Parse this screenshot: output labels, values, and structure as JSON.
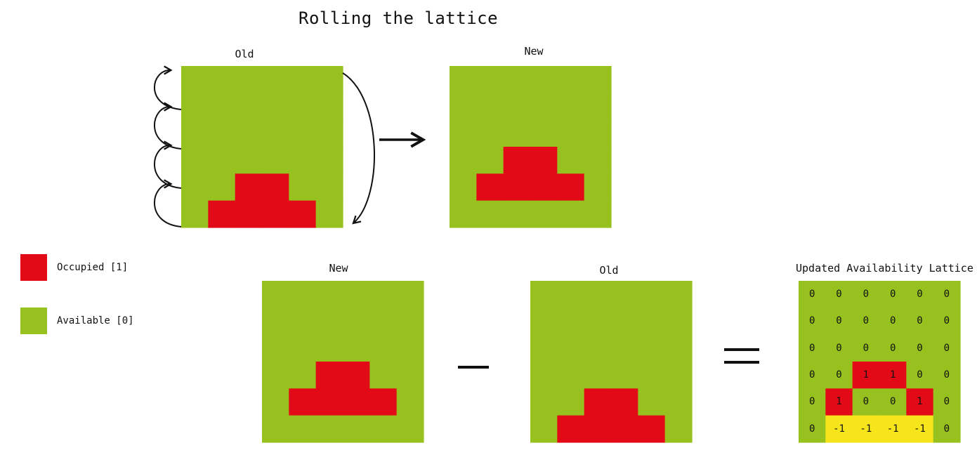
{
  "title": "Rolling the lattice",
  "panels": {
    "top_old_label": "Old",
    "top_new_label": "New",
    "bottom_new_label": "New",
    "bottom_old_label": "Old",
    "result_label": "Updated Availability Lattice"
  },
  "operators": {
    "minus": "−",
    "equals": "="
  },
  "legend": [
    {
      "label": "Occupied [1]",
      "color": "#e30a17"
    },
    {
      "label": "Available [0]",
      "color": "#97c11f"
    }
  ],
  "colors": {
    "available": "#97c11f",
    "occupied": "#e30a17",
    "negative": "#f6e51b",
    "arrow": "#111111"
  },
  "lattices": {
    "old": [
      [
        0,
        0,
        0,
        0,
        0,
        0
      ],
      [
        0,
        0,
        0,
        0,
        0,
        0
      ],
      [
        0,
        0,
        0,
        0,
        0,
        0
      ],
      [
        0,
        0,
        0,
        0,
        0,
        0
      ],
      [
        0,
        0,
        1,
        1,
        0,
        0
      ],
      [
        0,
        1,
        1,
        1,
        1,
        0
      ]
    ],
    "new": [
      [
        0,
        0,
        0,
        0,
        0,
        0
      ],
      [
        0,
        0,
        0,
        0,
        0,
        0
      ],
      [
        0,
        0,
        0,
        0,
        0,
        0
      ],
      [
        0,
        0,
        1,
        1,
        0,
        0
      ],
      [
        0,
        1,
        1,
        1,
        1,
        0
      ],
      [
        0,
        0,
        0,
        0,
        0,
        0
      ]
    ],
    "result": [
      [
        "0",
        "0",
        "0",
        "0",
        "0",
        "0"
      ],
      [
        "0",
        "0",
        "0",
        "0",
        "0",
        "0"
      ],
      [
        "0",
        "0",
        "0",
        "0",
        "0",
        "0"
      ],
      [
        "0",
        "0",
        "1",
        "1",
        "0",
        "0"
      ],
      [
        "0",
        "1",
        "0",
        "0",
        "1",
        "0"
      ],
      [
        "0",
        "-1",
        "-1",
        "-1",
        "-1",
        "0"
      ]
    ]
  }
}
